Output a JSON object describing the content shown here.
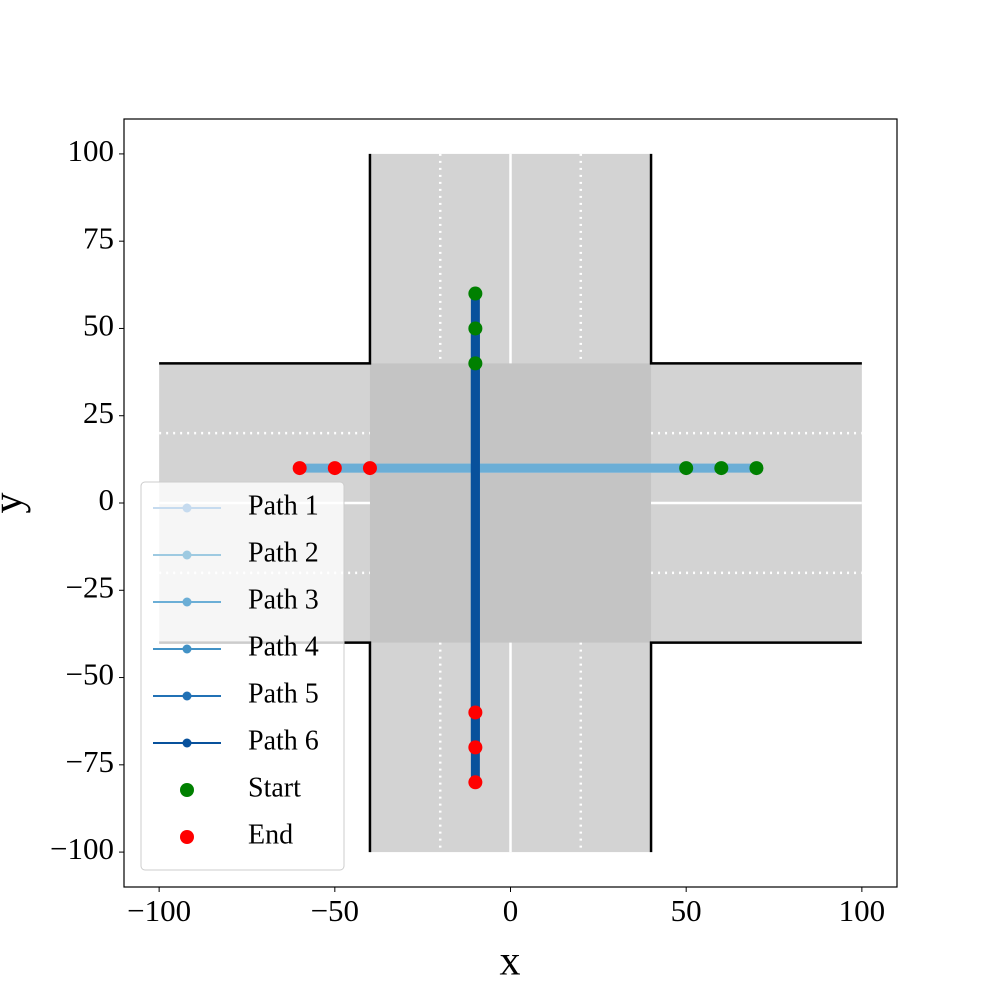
{
  "chart_data": {
    "type": "path",
    "xlabel": "x",
    "ylabel": "y",
    "xlim": [
      -110,
      110
    ],
    "ylim": [
      -110,
      110
    ],
    "xticks": [
      {
        "value": -100,
        "label": "−100"
      },
      {
        "value": -50,
        "label": "−50"
      },
      0,
      50,
      100
    ],
    "yticks": [
      {
        "value": -100,
        "label": "−100"
      },
      {
        "value": -75,
        "label": "−75"
      },
      {
        "value": -50,
        "label": "−50"
      },
      {
        "value": -25,
        "label": "−25"
      },
      0,
      25,
      50,
      75,
      100
    ],
    "legend": "lower left",
    "series": [
      {
        "name": "Path 1",
        "color": "#c6dbef",
        "kind": "line",
        "x": [
          50,
          -40
        ],
        "values": [
          10,
          10
        ]
      },
      {
        "name": "Path 2",
        "color": "#9ecae1",
        "kind": "line",
        "x": [
          60,
          -50
        ],
        "values": [
          10,
          10
        ]
      },
      {
        "name": "Path 3",
        "color": "#6baed6",
        "kind": "line",
        "x": [
          70,
          -60
        ],
        "values": [
          10,
          10
        ]
      },
      {
        "name": "Path 4",
        "color": "#4292c6",
        "kind": "line",
        "x": [
          -10,
          -10
        ],
        "values": [
          40,
          -60
        ]
      },
      {
        "name": "Path 5",
        "color": "#2171b5",
        "kind": "line",
        "x": [
          -10,
          -10
        ],
        "values": [
          50,
          -70
        ]
      },
      {
        "name": "Path 6",
        "color": "#08519c",
        "kind": "line",
        "x": [
          -10,
          -10
        ],
        "values": [
          60,
          -80
        ]
      },
      {
        "name": "Start",
        "color": "#008000",
        "kind": "points",
        "x": [
          50,
          60,
          70,
          -10,
          -10,
          -10
        ],
        "values": [
          10,
          10,
          10,
          40,
          50,
          60
        ]
      },
      {
        "name": "End",
        "color": "#ff0000",
        "kind": "points",
        "x": [
          -40,
          -50,
          -60,
          -10,
          -10,
          -10
        ],
        "values": [
          10,
          10,
          10,
          -60,
          -70,
          -80
        ]
      }
    ]
  }
}
